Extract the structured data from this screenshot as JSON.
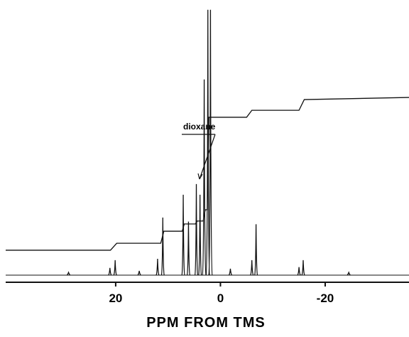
{
  "chart_data": {
    "type": "line",
    "x_label": "PPM FROM TMS",
    "annotation": "dioxane",
    "xlim": [
      41,
      -36
    ],
    "ylim": [
      0,
      100
    ],
    "xticks": [
      20,
      0,
      -20
    ],
    "color": "#111111",
    "spectrum": {
      "x": [
        29,
        21.1,
        20.1,
        15.5,
        12,
        11,
        7.1,
        6.1,
        4.6,
        3.9,
        3.1,
        2.4,
        1.9,
        -1.9,
        -6,
        -6.8,
        -15,
        -15.8,
        -24.5
      ],
      "values": [
        1,
        2.7,
        5.6,
        1.6,
        6.1,
        21.5,
        30,
        20,
        34,
        30,
        73,
        99,
        99,
        2.4,
        5.6,
        19,
        3,
        5.6,
        1
      ]
    },
    "integral": {
      "x": [
        41,
        21,
        19.8,
        11.4,
        10.8,
        7.3,
        6.9,
        4.8,
        4.4,
        3.3,
        2.9,
        2.5,
        2.2,
        -5,
        -6,
        -15,
        -16,
        -36
      ],
      "values": [
        9.3,
        9.3,
        11.9,
        11.9,
        16.4,
        16.4,
        19.1,
        19.1,
        20.2,
        20.2,
        24.4,
        24.4,
        58.9,
        58.9,
        61.5,
        61.5,
        65.5,
        66.3
      ]
    }
  }
}
